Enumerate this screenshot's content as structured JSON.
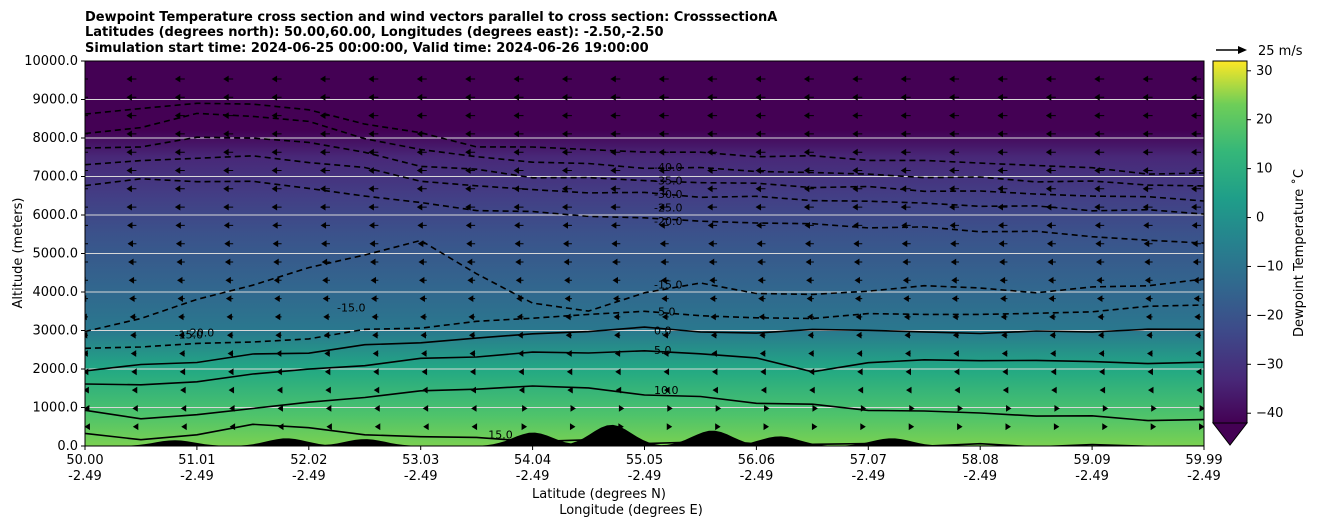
{
  "chart_data": {
    "type": "contourf",
    "title_lines": [
      "Dewpoint Temperature cross section and wind vectors parallel to cross section: CrosssectionA",
      "Latitudes (degrees north): 50.00,60.00, Longitudes (degrees east): -2.50,-2.50",
      "Simulation start time: 2024-06-25 00:00:00, Valid time: 2024-06-26 19:00:00"
    ],
    "xlabel_lines": [
      "Latitude (degrees N)",
      "Longitude (degrees E)"
    ],
    "ylabel": "Altitude (meters)",
    "x_ticks": [
      {
        "lat": "50.00",
        "lon": "-2.49"
      },
      {
        "lat": "51.01",
        "lon": "-2.49"
      },
      {
        "lat": "52.02",
        "lon": "-2.49"
      },
      {
        "lat": "53.03",
        "lon": "-2.49"
      },
      {
        "lat": "54.04",
        "lon": "-2.49"
      },
      {
        "lat": "55.05",
        "lon": "-2.49"
      },
      {
        "lat": "56.06",
        "lon": "-2.49"
      },
      {
        "lat": "57.07",
        "lon": "-2.49"
      },
      {
        "lat": "58.08",
        "lon": "-2.49"
      },
      {
        "lat": "59.09",
        "lon": "-2.49"
      },
      {
        "lat": "59.99",
        "lon": "-2.49"
      }
    ],
    "xlim": [
      50.0,
      59.99
    ],
    "ylim": [
      0,
      10000
    ],
    "y_ticks": [
      0,
      1000,
      2000,
      3000,
      4000,
      5000,
      6000,
      7000,
      8000,
      9000,
      10000
    ],
    "y_tick_labels": [
      "0.0",
      "1000.0",
      "2000.0",
      "3000.0",
      "4000.0",
      "5000.0",
      "6000.0",
      "7000.0",
      "8000.0",
      "9000.0",
      "10000.0"
    ],
    "grid": "horizontal",
    "colorbar": {
      "label": "Dewpoint Temperature ˚C",
      "ticks": [
        -40,
        -30,
        -20,
        -10,
        0,
        10,
        20,
        30
      ],
      "tick_labels": [
        "−40",
        "−30",
        "−20",
        "−10",
        "0",
        "10",
        "20",
        "30"
      ],
      "range": [
        -42,
        32
      ],
      "extend": "min",
      "colormap": "viridis"
    },
    "quiver_key": "25 m/s",
    "contour_levels": [
      -40,
      -35,
      -30,
      -25,
      -20,
      -15,
      -5,
      0,
      5,
      10,
      15
    ],
    "contours": [
      {
        "level": -40,
        "heights": [
          8650,
          8750,
          8900,
          8900,
          8700,
          8400,
          8100,
          7800,
          7750,
          7700,
          7650,
          7600,
          7550,
          7500,
          7450,
          7400,
          7350,
          7300,
          7200,
          7100,
          7050
        ]
      },
      {
        "level": -35,
        "heights": [
          8100,
          8300,
          8600,
          8600,
          8400,
          8000,
          7700,
          7500,
          7400,
          7300,
          7250,
          7200,
          7150,
          7100,
          7050,
          7000,
          6950,
          6900,
          6850,
          6800,
          6750
        ]
      },
      {
        "level": -30,
        "heights": [
          7700,
          7800,
          8000,
          8000,
          7900,
          7600,
          7300,
          7150,
          7000,
          6950,
          6900,
          6850,
          6800,
          6750,
          6700,
          6650,
          6600,
          6550,
          6500,
          6450,
          6400
        ]
      },
      {
        "level": -25,
        "heights": [
          7300,
          7400,
          7500,
          7500,
          7400,
          7200,
          6900,
          6750,
          6650,
          6600,
          6550,
          6500,
          6450,
          6400,
          6350,
          6300,
          6250,
          6200,
          6150,
          6100,
          6050
        ]
      },
      {
        "level": -20,
        "heights": [
          6800,
          6900,
          6900,
          6850,
          6700,
          6500,
          6300,
          6150,
          6050,
          6000,
          5900,
          5850,
          5800,
          5750,
          5700,
          5650,
          5600,
          5550,
          5450,
          5350,
          5250
        ]
      },
      {
        "level": -15,
        "heights": [
          3000,
          3300,
          3800,
          4200,
          4600,
          5000,
          5300,
          4500,
          3700,
          3500,
          4000,
          4200,
          4000,
          3900,
          4050,
          4150,
          4100,
          4000,
          4100,
          4200,
          4300
        ]
      },
      {
        "level": -5,
        "heights": [
          2500,
          2600,
          2650,
          2700,
          2800,
          3000,
          3100,
          3200,
          3350,
          3400,
          3500,
          3400,
          3300,
          3350,
          3400,
          3450,
          3400,
          3450,
          3500,
          3600,
          3700
        ]
      },
      {
        "level": 0,
        "heights": [
          1950,
          2100,
          2200,
          2350,
          2450,
          2600,
          2700,
          2800,
          2900,
          3000,
          3050,
          3000,
          2900,
          3050,
          3000,
          2950,
          2950,
          2950,
          3000,
          3000,
          3050
        ]
      },
      {
        "level": 5,
        "heights": [
          1650,
          1550,
          1700,
          1850,
          2000,
          2100,
          2250,
          2350,
          2400,
          2450,
          2450,
          2400,
          2300,
          1900,
          2200,
          2200,
          2250,
          2200,
          2200,
          2150,
          2150
        ]
      },
      {
        "level": 10,
        "heights": [
          950,
          700,
          800,
          1000,
          1100,
          1300,
          1400,
          1500,
          1550,
          1500,
          1350,
          1250,
          1150,
          1050,
          950,
          900,
          850,
          800,
          750,
          700,
          650
        ]
      },
      {
        "level": 15,
        "heights": [
          300,
          200,
          250,
          600,
          450,
          300,
          250,
          200,
          150,
          120,
          100,
          80,
          60,
          50,
          40,
          30,
          20,
          15,
          10,
          5,
          0
        ]
      }
    ],
    "contour_labels": [
      {
        "text": "-40.0",
        "lat": 55.08,
        "alt": 7250
      },
      {
        "text": "-35.0",
        "lat": 55.08,
        "alt": 6900
      },
      {
        "text": "-30.0",
        "lat": 55.08,
        "alt": 6550
      },
      {
        "text": "-25.0",
        "lat": 55.08,
        "alt": 6200
      },
      {
        "text": "-20.0",
        "lat": 55.08,
        "alt": 5850
      },
      {
        "text": "-15.0",
        "lat": 55.08,
        "alt": 4200
      },
      {
        "text": "-5.0",
        "lat": 55.08,
        "alt": 3500
      },
      {
        "text": "0.0",
        "lat": 55.08,
        "alt": 3000
      },
      {
        "text": "5.0",
        "lat": 55.08,
        "alt": 2500
      },
      {
        "text": "10.0",
        "lat": 55.08,
        "alt": 1450
      },
      {
        "text": "-15.0",
        "lat": 52.25,
        "alt": 3600
      },
      {
        "text": "-15.0",
        "lat": 50.8,
        "alt": 2900
      },
      {
        "text": "-20.0",
        "lat": 50.9,
        "alt": 2950
      },
      {
        "text": "15.0",
        "lat": 53.6,
        "alt": 300
      }
    ],
    "terrain_peaks": [
      {
        "lat": 50.8,
        "alt": 150
      },
      {
        "lat": 51.8,
        "alt": 200
      },
      {
        "lat": 52.5,
        "alt": 180
      },
      {
        "lat": 54.0,
        "alt": 350
      },
      {
        "lat": 54.7,
        "alt": 550
      },
      {
        "lat": 55.6,
        "alt": 400
      },
      {
        "lat": 56.2,
        "alt": 250
      },
      {
        "lat": 57.2,
        "alt": 200
      }
    ]
  }
}
